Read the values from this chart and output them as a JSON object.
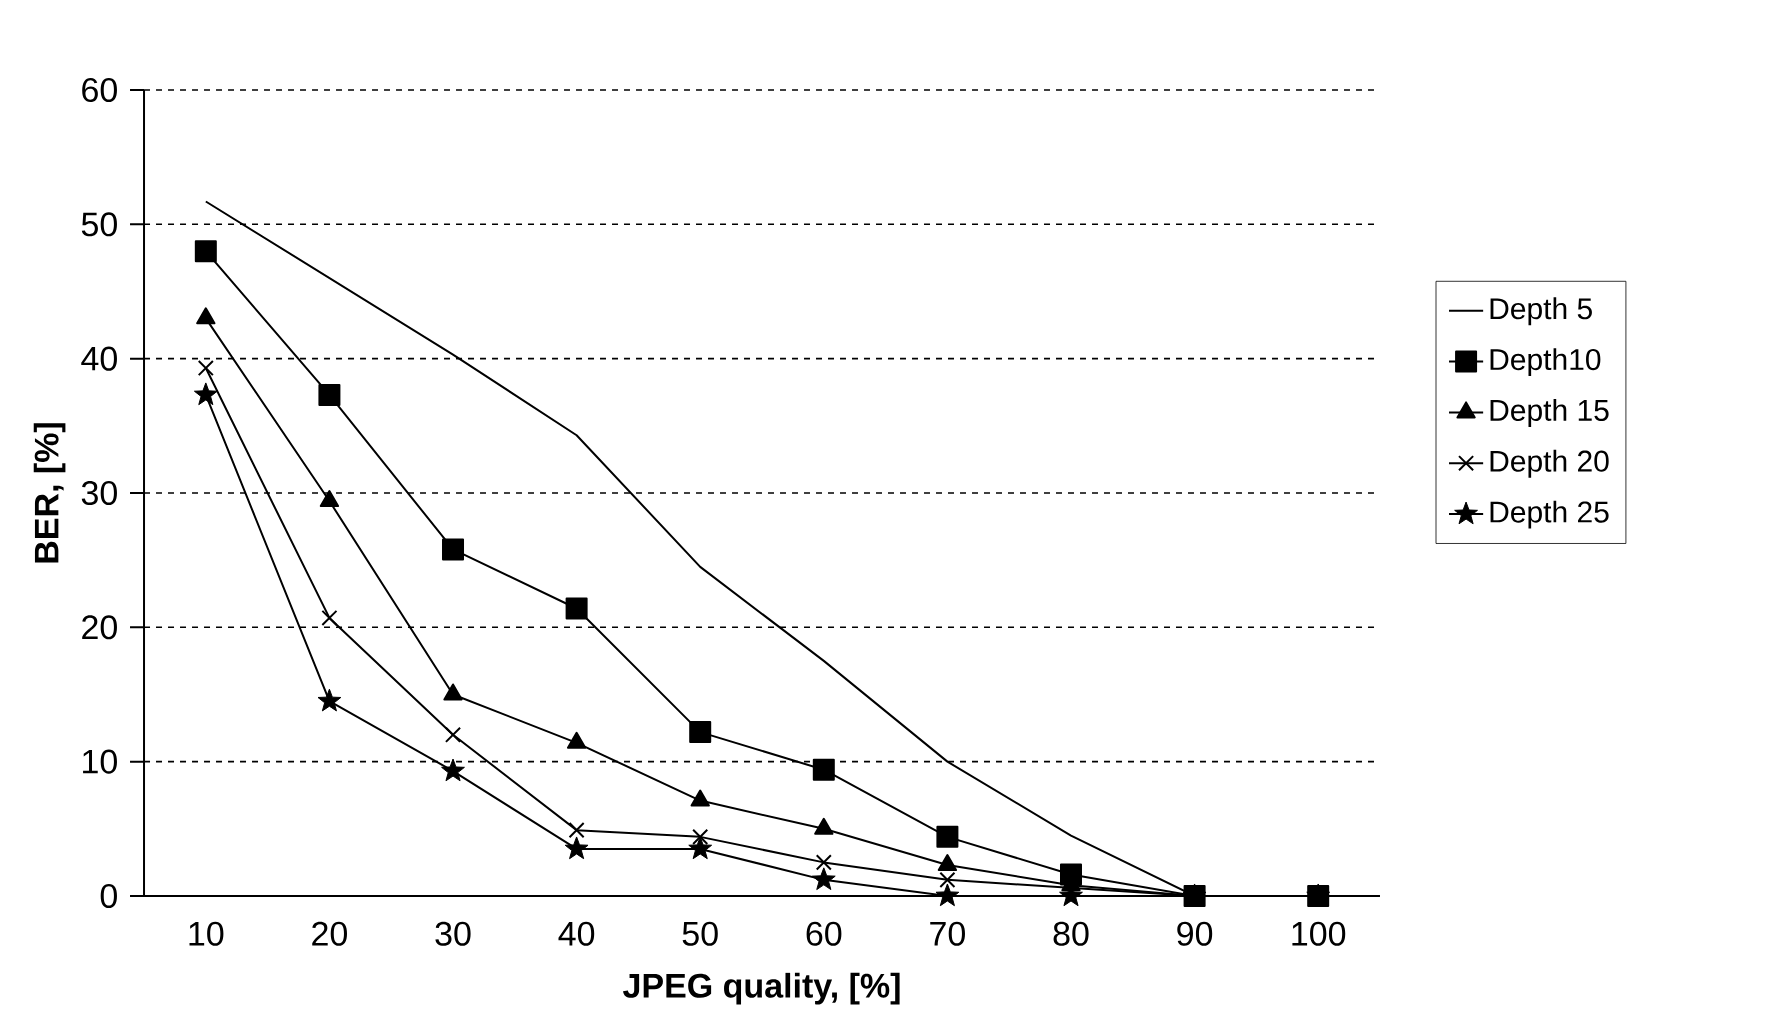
{
  "chart_data": {
    "type": "line",
    "xlabel": "JPEG quality, [%]",
    "ylabel": "BER, [%]",
    "categories": [
      "10",
      "20",
      "30",
      "40",
      "50",
      "60",
      "70",
      "80",
      "90",
      "100"
    ],
    "series": [
      {
        "name": "Depth 5",
        "color": "#000000",
        "marker": "none",
        "values": [
          51.7,
          46,
          40.3,
          34.3,
          24.5,
          17.5,
          10,
          4.5,
          0,
          0
        ]
      },
      {
        "name": "Depth10",
        "color": "#000000",
        "marker": "square",
        "values": [
          48,
          37.3,
          25.8,
          21.4,
          12.2,
          9.4,
          4.4,
          1.6,
          0,
          0
        ]
      },
      {
        "name": "Depth 15",
        "color": "#000000",
        "marker": "triangle",
        "values": [
          43,
          29.4,
          15,
          11.4,
          7.1,
          5,
          2.3,
          0.8,
          0,
          0
        ]
      },
      {
        "name": "Depth 20",
        "color": "#000000",
        "marker": "cross",
        "values": [
          39.3,
          20.7,
          12,
          4.9,
          4.4,
          2.5,
          1.2,
          null,
          0,
          0
        ]
      },
      {
        "name": "Depth 25",
        "color": "#000000",
        "marker": "star",
        "values": [
          37.3,
          14.5,
          9.3,
          3.5,
          3.5,
          1.2,
          0,
          0,
          0,
          0
        ]
      }
    ],
    "ylim": [
      0,
      60
    ],
    "yticks": [
      0,
      10,
      20,
      30,
      40,
      50,
      60
    ],
    "grid": "y",
    "legend": "right",
    "line_style": "solid"
  }
}
